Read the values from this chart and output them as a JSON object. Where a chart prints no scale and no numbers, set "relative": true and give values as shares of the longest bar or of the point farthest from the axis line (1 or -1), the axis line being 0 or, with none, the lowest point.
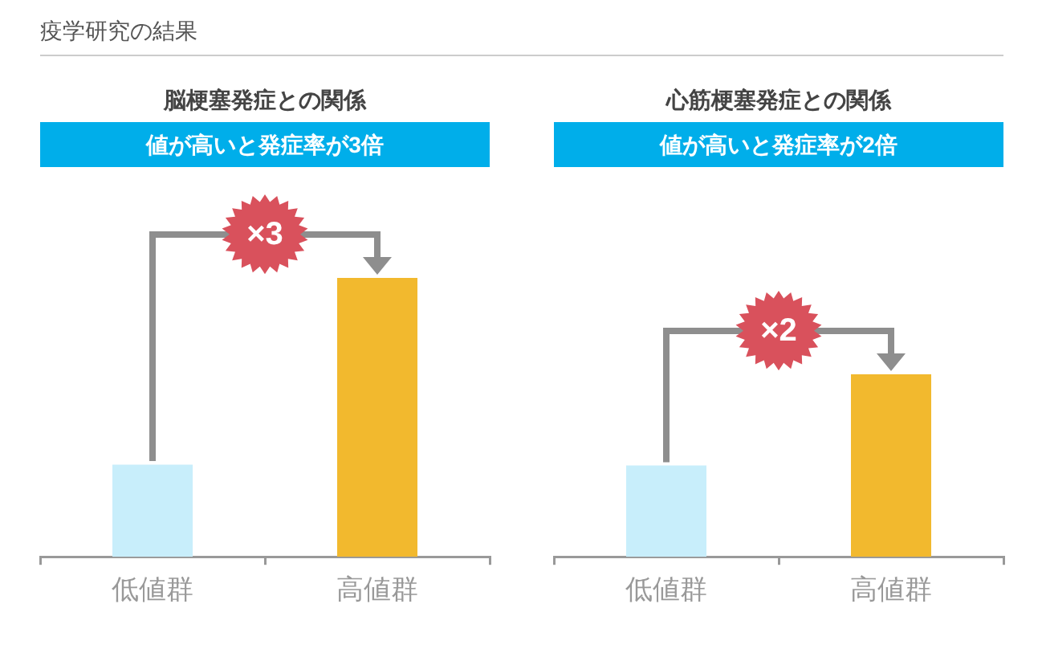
{
  "chart_data": [
    {
      "type": "other",
      "title": "疫学研究の結果"
    },
    {
      "type": "bar",
      "title": "脳梗塞発症との関係",
      "subtitle": "値が高いと発症率が3倍",
      "categories": [
        "低値群",
        "高値群"
      ],
      "values": [
        0.33,
        1
      ],
      "colors": [
        "#c8eefb",
        "#f2b92e"
      ],
      "relative": true,
      "annotations": [
        "×3"
      ]
    },
    {
      "type": "bar",
      "title": "心筋梗塞発症との関係",
      "subtitle": "値が高いと発症率が2倍",
      "categories": [
        "低値群",
        "高値群"
      ],
      "values": [
        0.5,
        1
      ],
      "colors": [
        "#c8eefb",
        "#f2b92e"
      ],
      "relative": true,
      "annotations": [
        "×2"
      ]
    }
  ]
}
